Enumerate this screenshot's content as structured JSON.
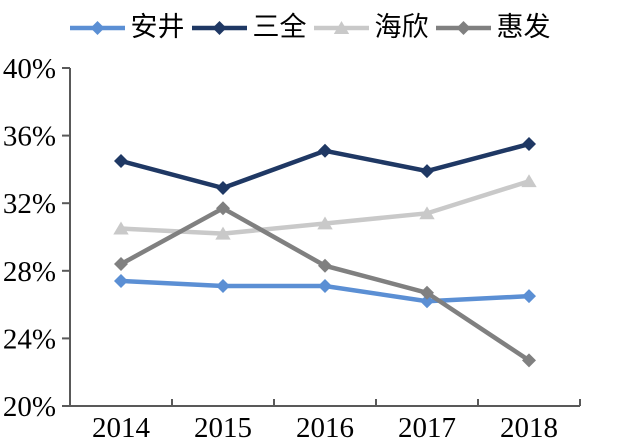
{
  "chart_data": {
    "type": "line",
    "title": "",
    "xlabel": "",
    "ylabel": "",
    "categories": [
      "2014",
      "2015",
      "2016",
      "2017",
      "2018"
    ],
    "series": [
      {
        "name": "安井",
        "color": "#5B8FD4",
        "marker": "diamond",
        "values": [
          27.4,
          27.1,
          27.1,
          26.2,
          26.5
        ]
      },
      {
        "name": "三全",
        "color": "#1F3864",
        "marker": "diamond",
        "values": [
          34.5,
          32.9,
          35.1,
          33.9,
          35.5
        ]
      },
      {
        "name": "海欣",
        "color": "#C9C9C9",
        "marker": "triangle",
        "values": [
          30.5,
          30.2,
          30.8,
          31.4,
          33.3
        ]
      },
      {
        "name": "惠发",
        "color": "#808080",
        "marker": "diamond",
        "values": [
          28.4,
          31.7,
          28.3,
          26.7,
          22.7
        ]
      }
    ],
    "ylim": [
      20,
      40
    ],
    "ytick_step": 4,
    "ytick_labels": [
      "20%",
      "24%",
      "28%",
      "32%",
      "36%",
      "40%"
    ],
    "grid": false,
    "legend_position": "top",
    "axis_color": "#595959",
    "label_color": "#000000"
  }
}
